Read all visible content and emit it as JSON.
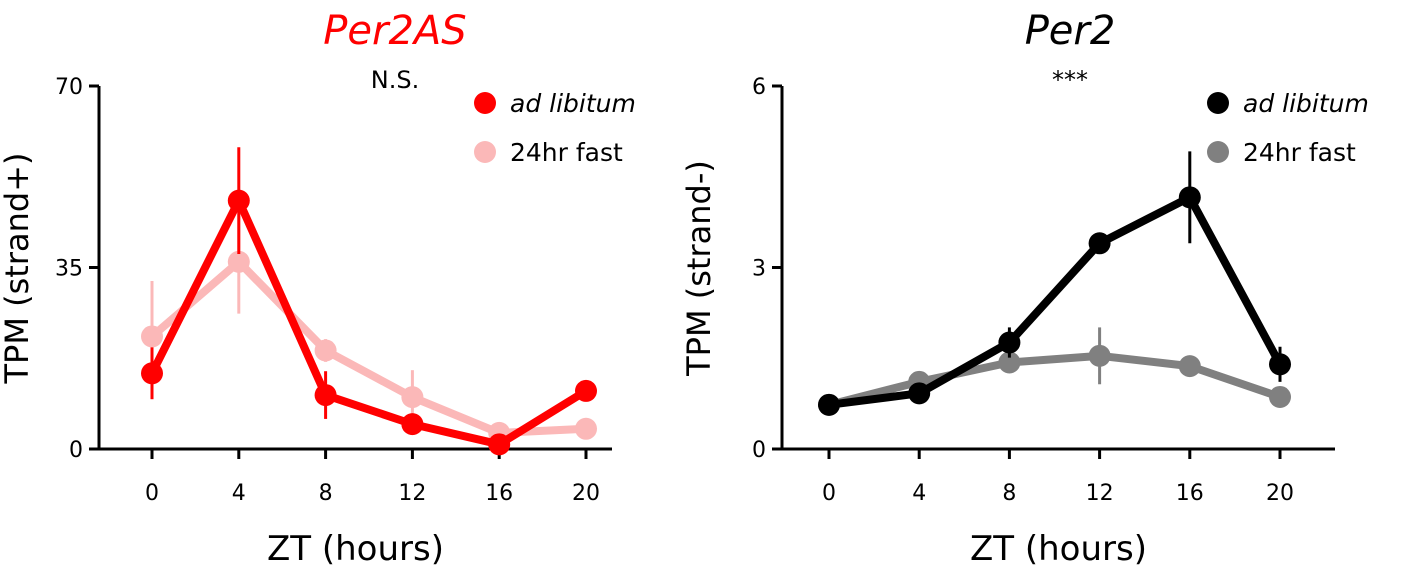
{
  "chart_data": [
    {
      "type": "line",
      "title": "Per2AS",
      "title_color": "#ff0000",
      "annotation": "N.S.",
      "xlabel": "ZT (hours)",
      "ylabel": "TPM (strand+)",
      "x": [
        0,
        4,
        8,
        12,
        16,
        20
      ],
      "xticks": [
        "0",
        "4",
        "8",
        "12",
        "16",
        "20"
      ],
      "ylim": [
        0,
        70
      ],
      "yticks": [
        "0",
        "35",
        "70"
      ],
      "grid": false,
      "legend_position": "top-right",
      "series": [
        {
          "name": "ad libitum",
          "name_italic": true,
          "color": "#ff0000",
          "values": [
            14.6,
            47.9,
            10.4,
            4.8,
            0.9,
            11.2
          ],
          "errors": [
            5.0,
            10.3,
            4.6,
            0,
            0,
            0
          ]
        },
        {
          "name": "24hr fast",
          "name_italic": false,
          "color": "#fbb8b8",
          "values": [
            21.7,
            36.1,
            19.0,
            10.0,
            3.1,
            3.9
          ],
          "errors": [
            10.7,
            10.0,
            2.2,
            5.2,
            0,
            0
          ]
        }
      ]
    },
    {
      "type": "line",
      "title": "Per2",
      "title_color": "#000000",
      "annotation": "***",
      "xlabel": "ZT (hours)",
      "ylabel": "TPM (strand-)",
      "x": [
        0,
        4,
        8,
        12,
        16,
        20
      ],
      "xticks": [
        "0",
        "4",
        "8",
        "12",
        "16",
        "20"
      ],
      "ylim": [
        0,
        6
      ],
      "yticks": [
        "0",
        "3",
        "6"
      ],
      "grid": false,
      "legend_position": "top-right",
      "series": [
        {
          "name": "ad libitum",
          "name_italic": true,
          "color": "#000000",
          "values": [
            0.73,
            0.92,
            1.76,
            3.4,
            4.16,
            1.4
          ],
          "errors": [
            0,
            0,
            0.25,
            0,
            0.76,
            0.29
          ]
        },
        {
          "name": "24hr fast",
          "name_italic": false,
          "color": "#808080",
          "values": [
            0.73,
            1.11,
            1.43,
            1.54,
            1.37,
            0.86
          ],
          "errors": [
            0,
            0.15,
            0,
            0.47,
            0,
            0
          ]
        }
      ]
    }
  ]
}
